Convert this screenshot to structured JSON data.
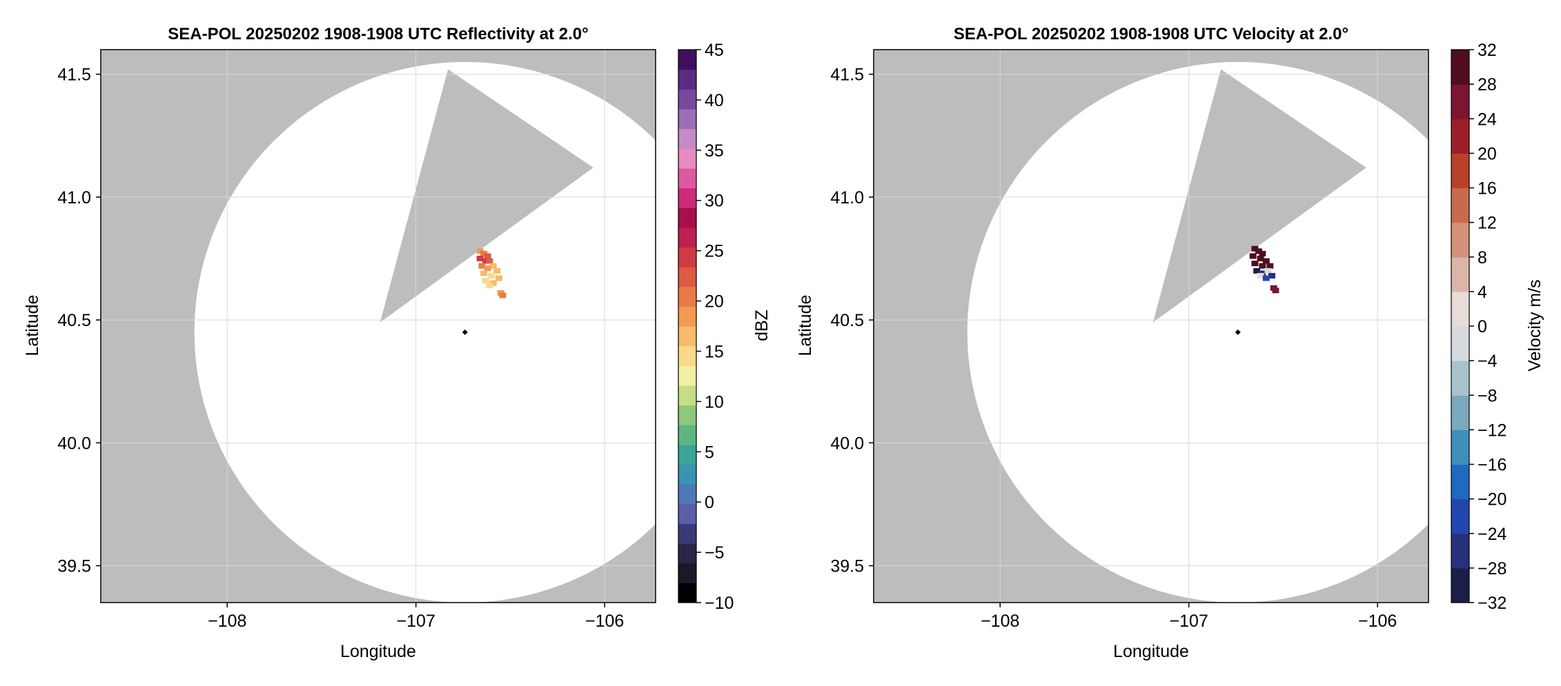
{
  "chart_data": [
    {
      "type": "heatmap",
      "title": "SEA-POL 20250202 1908-1908 UTC Reflectivity at 2.0°",
      "xlabel": "Longitude",
      "ylabel": "Latitude",
      "xlim": [
        -108.67,
        -105.73
      ],
      "ylim": [
        39.35,
        41.6
      ],
      "xticks": [
        -108,
        -107,
        -106
      ],
      "xtick_labels": [
        "−108",
        "−107",
        "−106"
      ],
      "yticks": [
        39.5,
        40.0,
        40.5,
        41.0,
        41.5
      ],
      "ytick_labels": [
        "39.5",
        "40.0",
        "40.5",
        "41.0",
        "41.5"
      ],
      "grid": true,
      "radar_site": {
        "lon": -106.74,
        "lat": 40.45
      },
      "coverage_range_deg_lat": 1.1,
      "sector_gap": {
        "apex": {
          "lon": -107.19,
          "lat": 40.49
        },
        "edge_a": {
          "lon": -106.83,
          "lat": 41.52
        },
        "edge_b": {
          "lon": -106.06,
          "lat": 41.12
        }
      },
      "echoes": [
        {
          "lon": -106.66,
          "lat": 40.78,
          "value": 18
        },
        {
          "lon": -106.64,
          "lat": 40.77,
          "value": 21
        },
        {
          "lon": -106.62,
          "lat": 40.76,
          "value": 23
        },
        {
          "lon": -106.66,
          "lat": 40.75,
          "value": 24
        },
        {
          "lon": -106.63,
          "lat": 40.74,
          "value": 25
        },
        {
          "lon": -106.61,
          "lat": 40.74,
          "value": 22
        },
        {
          "lon": -106.65,
          "lat": 40.72,
          "value": 20
        },
        {
          "lon": -106.59,
          "lat": 40.72,
          "value": 17
        },
        {
          "lon": -106.62,
          "lat": 40.71,
          "value": 19
        },
        {
          "lon": -106.57,
          "lat": 40.7,
          "value": 16
        },
        {
          "lon": -106.64,
          "lat": 40.69,
          "value": 16
        },
        {
          "lon": -106.6,
          "lat": 40.68,
          "value": 15
        },
        {
          "lon": -106.56,
          "lat": 40.67,
          "value": 17
        },
        {
          "lon": -106.63,
          "lat": 40.66,
          "value": 14
        },
        {
          "lon": -106.59,
          "lat": 40.65,
          "value": 16
        },
        {
          "lon": -106.61,
          "lat": 40.64,
          "value": 15
        },
        {
          "lon": -106.55,
          "lat": 40.61,
          "value": 18
        },
        {
          "lon": -106.54,
          "lat": 40.6,
          "value": 21
        }
      ],
      "colorbar": {
        "label": "dBZ",
        "min": -10,
        "max": 45,
        "ticks": [
          -10,
          -5,
          0,
          5,
          10,
          15,
          20,
          25,
          30,
          35,
          40,
          45
        ],
        "tick_labels": [
          "−10",
          "−5",
          "0",
          "5",
          "10",
          "15",
          "20",
          "25",
          "30",
          "35",
          "40",
          "45"
        ],
        "colors": [
          "#000000",
          "#1a1a26",
          "#2a2545",
          "#3b3a76",
          "#5a5fa8",
          "#4f78b7",
          "#3b93b2",
          "#3aa596",
          "#5db680",
          "#8fc77c",
          "#c6dd86",
          "#f1f0a4",
          "#fad98a",
          "#f7bb6a",
          "#f29a52",
          "#e97b46",
          "#dd5a43",
          "#cf3a45",
          "#c0204e",
          "#a80e4b",
          "#cd2a78",
          "#de5aa0",
          "#e68bc0",
          "#c48bc6",
          "#9c6cb5",
          "#7a479f",
          "#5b2a85",
          "#3e0f5f"
        ]
      }
    },
    {
      "type": "heatmap",
      "title": "SEA-POL 20250202 1908-1908 UTC Velocity at 2.0°",
      "xlabel": "Longitude",
      "ylabel": "Latitude",
      "xlim": [
        -108.67,
        -105.73
      ],
      "ylim": [
        39.35,
        41.6
      ],
      "xticks": [
        -108,
        -107,
        -106
      ],
      "xtick_labels": [
        "−108",
        "−107",
        "−106"
      ],
      "yticks": [
        39.5,
        40.0,
        40.5,
        41.0,
        41.5
      ],
      "ytick_labels": [
        "39.5",
        "40.0",
        "40.5",
        "41.0",
        "41.5"
      ],
      "grid": true,
      "radar_site": {
        "lon": -106.74,
        "lat": 40.45
      },
      "coverage_range_deg_lat": 1.1,
      "sector_gap": {
        "apex": {
          "lon": -107.19,
          "lat": 40.49
        },
        "edge_a": {
          "lon": -106.83,
          "lat": 41.52
        },
        "edge_b": {
          "lon": -106.06,
          "lat": 41.12
        }
      },
      "echoes": [
        {
          "lon": -106.65,
          "lat": 40.79,
          "value": 30
        },
        {
          "lon": -106.63,
          "lat": 40.78,
          "value": 31
        },
        {
          "lon": -106.61,
          "lat": 40.77,
          "value": 30
        },
        {
          "lon": -106.66,
          "lat": 40.76,
          "value": 31
        },
        {
          "lon": -106.62,
          "lat": 40.75,
          "value": 31
        },
        {
          "lon": -106.59,
          "lat": 40.74,
          "value": 30
        },
        {
          "lon": -106.65,
          "lat": 40.73,
          "value": 30
        },
        {
          "lon": -106.61,
          "lat": 40.72,
          "value": 31
        },
        {
          "lon": -106.57,
          "lat": 40.72,
          "value": 30
        },
        {
          "lon": -106.64,
          "lat": 40.7,
          "value": -30
        },
        {
          "lon": -106.61,
          "lat": 40.69,
          "value": -28
        },
        {
          "lon": -106.58,
          "lat": 40.7,
          "value": -4
        },
        {
          "lon": -106.62,
          "lat": 40.68,
          "value": 2
        },
        {
          "lon": -106.56,
          "lat": 40.68,
          "value": -26
        },
        {
          "lon": -106.59,
          "lat": 40.67,
          "value": -22
        },
        {
          "lon": -106.55,
          "lat": 40.63,
          "value": 26
        },
        {
          "lon": -106.54,
          "lat": 40.62,
          "value": 27
        }
      ],
      "colorbar": {
        "label": "Velocity m/s",
        "min": -32,
        "max": 32,
        "ticks": [
          -32,
          -28,
          -24,
          -20,
          -16,
          -12,
          -8,
          -4,
          0,
          4,
          8,
          12,
          16,
          20,
          24,
          28,
          32
        ],
        "tick_labels": [
          "−32",
          "−28",
          "−24",
          "−20",
          "−16",
          "−12",
          "−8",
          "−4",
          "0",
          "4",
          "8",
          "12",
          "16",
          "20",
          "24",
          "28",
          "32"
        ],
        "colors": [
          "#1b1f47",
          "#27307a",
          "#2246b0",
          "#1d6ac0",
          "#3e8ebc",
          "#7aa9bc",
          "#a9c2cb",
          "#d5dbdf",
          "#e8dcd9",
          "#ddb5a8",
          "#d39279",
          "#c86b4d",
          "#b84228",
          "#9b1f29",
          "#7c1530",
          "#4f0d1f"
        ]
      }
    }
  ],
  "colors": {
    "background_mask": "#bdbdbd",
    "coverage": "#ffffff",
    "grid": "#d9d9d9",
    "axis": "#000000"
  }
}
